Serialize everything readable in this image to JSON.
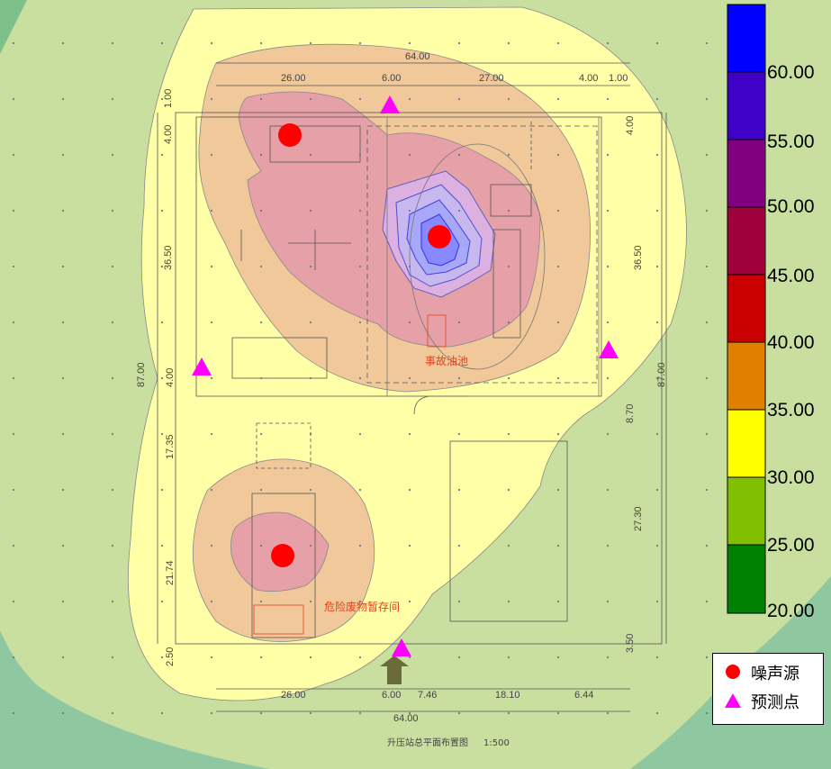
{
  "colorbar": {
    "labels": [
      "60.00",
      "55.00",
      "50.00",
      "45.00",
      "40.00",
      "35.00",
      "30.00",
      "25.00",
      "20.00"
    ],
    "colors": [
      "#0000ff",
      "#3f00c8",
      "#800080",
      "#a0003c",
      "#c80000",
      "#e08000",
      "#ffff00",
      "#80c000",
      "#008000"
    ]
  },
  "legend": {
    "source_label": "噪声源",
    "predict_label": "预测点",
    "source_color": "#ff0000",
    "predict_color": "#ff00ff"
  },
  "plan": {
    "dims_top": [
      "64.00",
      "26.00",
      "6.00",
      "27.00",
      "4.00",
      "1.00"
    ],
    "dims_bottom": [
      "26.00",
      "6.00",
      "7.46",
      "18.10",
      "6.44",
      "64.00"
    ],
    "dims_left": [
      "1.00",
      "4.00",
      "36.50",
      "87.00",
      "4.00",
      "17.35",
      "21.74",
      "2.50"
    ],
    "dims_right": [
      "4.00",
      "36.50",
      "87.00",
      "8.70",
      "27.30",
      "3.50"
    ],
    "label_oil_pool": "事故油池",
    "label_hazardous_store": "危险废物暂存间",
    "title": "升压站总平面布置图",
    "scale": "1:500"
  },
  "noise_sources": [
    {
      "name": "source-1"
    },
    {
      "name": "source-2"
    },
    {
      "name": "source-3"
    }
  ],
  "predict_points": [
    {
      "name": "predict-point-1"
    },
    {
      "name": "predict-point-2"
    },
    {
      "name": "predict-point-3"
    },
    {
      "name": "predict-point-4"
    }
  ]
}
